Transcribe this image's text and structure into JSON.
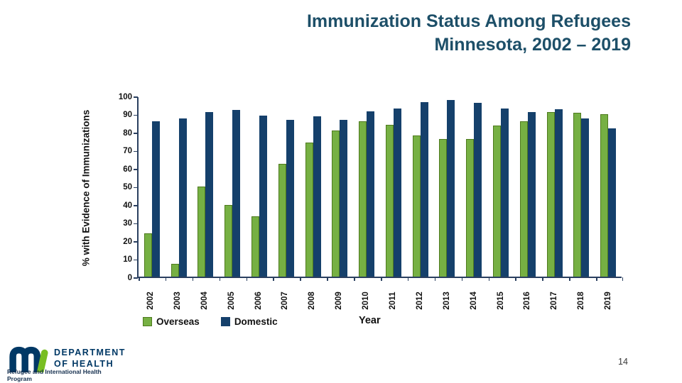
{
  "slide": {
    "title_line1": "Immunization Status Among Refugees",
    "title_line2": "Minnesota, 2002 – 2019",
    "page_number": "14"
  },
  "chart_data": {
    "type": "bar",
    "title": "Immunization Status Among Refugees, Minnesota, 2002 – 2019",
    "categories": [
      "2002",
      "2003",
      "2004",
      "2005",
      "2006",
      "2007",
      "2008",
      "2009",
      "2010",
      "2011",
      "2012",
      "2013",
      "2014",
      "2015",
      "2016",
      "2017",
      "2018",
      "2019"
    ],
    "series": [
      {
        "name": "Overseas",
        "color": "#76b043",
        "values": [
          24,
          7,
          50,
          39.5,
          33.5,
          62.5,
          74,
          81,
          86,
          84,
          78,
          76,
          76,
          83.5,
          86,
          91,
          90.5,
          90
        ]
      },
      {
        "name": "Domestic",
        "color": "#15406b",
        "values": [
          86,
          87.5,
          91,
          92,
          89,
          86.5,
          88.5,
          86.5,
          91.5,
          93,
          96.5,
          97.5,
          96,
          93,
          91,
          92.5,
          87.5,
          82
        ]
      }
    ],
    "xlabel": "Year",
    "ylabel": "% with Evidence of Immunizations",
    "ylim": [
      0,
      100
    ],
    "yticks": [
      0,
      10,
      20,
      30,
      40,
      50,
      60,
      70,
      80,
      90,
      100
    ],
    "grid": false,
    "legend_position": "bottom-left",
    "bar_colors": {
      "overseas_green": "#76b043",
      "domestic_navy": "#15406b"
    }
  },
  "footer": {
    "logo_text_line1": "DEPARTMENT",
    "logo_text_line2": "OF HEALTH",
    "logo_subtext": "Refugee and International Health Program"
  }
}
